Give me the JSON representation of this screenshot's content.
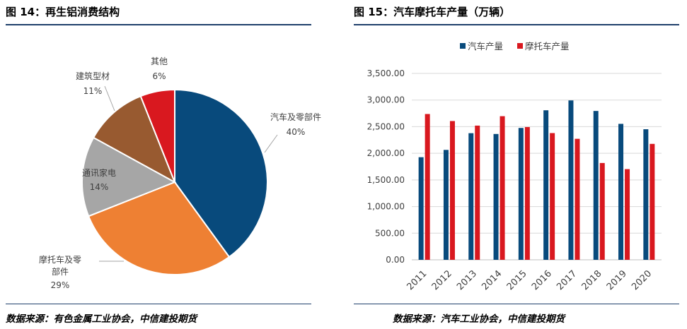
{
  "left_panel": {
    "title": "图 14：再生铝消费结构",
    "source": "数据来源：有色金属工业协会，中信建投期货"
  },
  "right_panel": {
    "title": "图 15：汽车摩托车产量（万辆）",
    "source": "数据来源：汽车工业协会，中信建投期货"
  },
  "chart_data": [
    {
      "type": "pie",
      "title": "",
      "slices": [
        {
          "label": "汽车及零部件",
          "value": 40,
          "value_label": "40%",
          "color": "#084a7c"
        },
        {
          "label": "摩托车及零部件",
          "value": 29,
          "value_label": "29%",
          "color": "#ee8033"
        },
        {
          "label": "通讯家电",
          "value": 14,
          "value_label": "14%",
          "color": "#a6a6a6"
        },
        {
          "label": "建筑型材",
          "value": 11,
          "value_label": "11%",
          "color": "#985a30"
        },
        {
          "label": "其他",
          "value": 6,
          "value_label": "6%",
          "color": "#d9181f"
        }
      ],
      "start_angle_deg": 0,
      "direction": "clockwise"
    },
    {
      "type": "bar",
      "title": "",
      "categories": [
        "2011",
        "2012",
        "2013",
        "2014",
        "2015",
        "2016",
        "2017",
        "2018",
        "2019",
        "2020"
      ],
      "series": [
        {
          "name": "汽车产量",
          "color": "#084a7c",
          "values": [
            1927,
            2064,
            2378,
            2363,
            2476,
            2808,
            2993,
            2795,
            2553,
            2452
          ]
        },
        {
          "name": "摩托车产量",
          "color": "#d9181f",
          "values": [
            2738,
            2606,
            2520,
            2697,
            2493,
            2380,
            2272,
            1818,
            1703,
            2177
          ]
        }
      ],
      "ylim": [
        0,
        3500
      ],
      "yticks": [
        0,
        500,
        1000,
        1500,
        2000,
        2500,
        3000,
        3500
      ],
      "ytick_labels": [
        "0.00",
        "500.00",
        "1,000.00",
        "1,500.00",
        "2,000.00",
        "2,500.00",
        "3,000.00",
        "3,500.00"
      ],
      "grid": true,
      "legend": "top",
      "xlabel": "",
      "ylabel": ""
    }
  ]
}
